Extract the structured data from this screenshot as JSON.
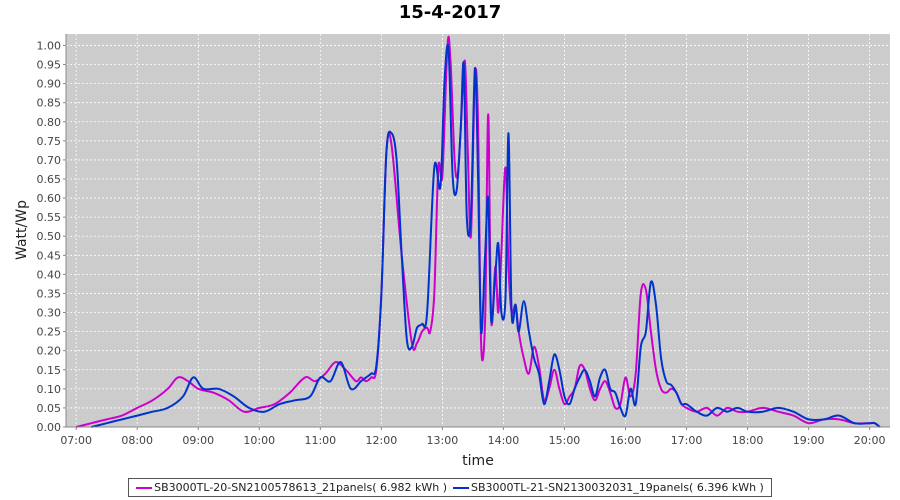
{
  "chart_data": {
    "type": "line",
    "title": "15-4-2017",
    "xlabel": "time",
    "ylabel": "Watt/Wp",
    "xlim": [
      "06:50",
      "20:20"
    ],
    "ylim": [
      0,
      1.03
    ],
    "grid": true,
    "legend_position": "bottom",
    "x_ticks": [
      "07:00",
      "08:00",
      "09:00",
      "10:00",
      "11:00",
      "12:00",
      "13:00",
      "14:00",
      "15:00",
      "16:00",
      "17:00",
      "18:00",
      "19:00",
      "20:00"
    ],
    "y_ticks": [
      "0.00",
      "0.05",
      "0.10",
      "0.15",
      "0.20",
      "0.25",
      "0.30",
      "0.35",
      "0.40",
      "0.45",
      "0.50",
      "0.55",
      "0.60",
      "0.65",
      "0.70",
      "0.75",
      "0.80",
      "0.85",
      "0.90",
      "0.95",
      "1.00"
    ],
    "series": [
      {
        "name": "SB3000TL-20-SN2100578613_21panels( 6.982 kWh )",
        "color": "#cc00cc",
        "x": [
          "07:00",
          "07:15",
          "07:30",
          "07:45",
          "08:00",
          "08:15",
          "08:30",
          "08:40",
          "08:50",
          "09:00",
          "09:15",
          "09:30",
          "09:45",
          "10:00",
          "10:15",
          "10:30",
          "10:45",
          "10:55",
          "11:05",
          "11:15",
          "11:25",
          "11:35",
          "11:40",
          "11:45",
          "11:50",
          "11:55",
          "12:00",
          "12:05",
          "12:10",
          "12:20",
          "12:30",
          "12:35",
          "12:40",
          "12:45",
          "12:48",
          "12:52",
          "12:56",
          "13:00",
          "13:05",
          "13:08",
          "13:12",
          "13:15",
          "13:18",
          "13:22",
          "13:25",
          "13:28",
          "13:32",
          "13:35",
          "13:38",
          "13:42",
          "13:45",
          "13:48",
          "13:52",
          "13:55",
          "13:58",
          "14:02",
          "14:05",
          "14:08",
          "14:12",
          "14:15",
          "14:20",
          "14:25",
          "14:30",
          "14:35",
          "14:40",
          "14:45",
          "14:50",
          "14:55",
          "15:00",
          "15:05",
          "15:10",
          "15:15",
          "15:20",
          "15:25",
          "15:30",
          "15:35",
          "15:40",
          "15:45",
          "15:50",
          "15:55",
          "16:00",
          "16:05",
          "16:10",
          "16:15",
          "16:20",
          "16:25",
          "16:30",
          "16:35",
          "16:40",
          "16:45",
          "16:50",
          "16:55",
          "17:00",
          "17:10",
          "17:20",
          "17:30",
          "17:40",
          "17:50",
          "18:00",
          "18:15",
          "18:30",
          "18:45",
          "19:00",
          "19:15",
          "19:30",
          "19:45",
          "20:00",
          "20:05",
          "20:10"
        ],
        "values": [
          0.0,
          0.01,
          0.02,
          0.03,
          0.05,
          0.07,
          0.1,
          0.13,
          0.12,
          0.1,
          0.09,
          0.07,
          0.04,
          0.05,
          0.06,
          0.09,
          0.13,
          0.12,
          0.14,
          0.17,
          0.15,
          0.12,
          0.13,
          0.12,
          0.13,
          0.15,
          0.35,
          0.72,
          0.74,
          0.45,
          0.22,
          0.22,
          0.25,
          0.26,
          0.25,
          0.35,
          0.68,
          0.66,
          1.0,
          0.96,
          0.7,
          0.66,
          0.78,
          0.96,
          0.72,
          0.5,
          0.92,
          0.8,
          0.22,
          0.28,
          0.82,
          0.28,
          0.42,
          0.3,
          0.46,
          0.68,
          0.42,
          0.3,
          0.32,
          0.25,
          0.18,
          0.14,
          0.21,
          0.16,
          0.07,
          0.1,
          0.15,
          0.1,
          0.06,
          0.08,
          0.1,
          0.16,
          0.15,
          0.1,
          0.07,
          0.1,
          0.12,
          0.09,
          0.05,
          0.06,
          0.13,
          0.08,
          0.14,
          0.35,
          0.36,
          0.25,
          0.15,
          0.1,
          0.09,
          0.1,
          0.09,
          0.06,
          0.05,
          0.04,
          0.05,
          0.03,
          0.05,
          0.04,
          0.04,
          0.05,
          0.04,
          0.03,
          0.01,
          0.02,
          0.02,
          0.01,
          0.01,
          0.01,
          0.0
        ]
      },
      {
        "name": "SB3000TL-21-SN2130032031_19panels( 6.396 kWh )",
        "color": "#0033cc",
        "x": [
          "07:15",
          "07:30",
          "07:45",
          "08:00",
          "08:15",
          "08:30",
          "08:45",
          "08:55",
          "09:05",
          "09:20",
          "09:35",
          "09:50",
          "10:05",
          "10:20",
          "10:35",
          "10:50",
          "11:00",
          "11:10",
          "11:20",
          "11:30",
          "11:40",
          "11:45",
          "11:50",
          "11:55",
          "12:00",
          "12:05",
          "12:10",
          "12:15",
          "12:20",
          "12:25",
          "12:30",
          "12:35",
          "12:40",
          "12:45",
          "12:52",
          "12:58",
          "13:02",
          "13:06",
          "13:10",
          "13:14",
          "13:18",
          "13:21",
          "13:24",
          "13:28",
          "13:32",
          "13:35",
          "13:38",
          "13:42",
          "13:45",
          "13:48",
          "13:52",
          "13:55",
          "13:58",
          "14:02",
          "14:05",
          "14:08",
          "14:12",
          "14:15",
          "14:20",
          "14:25",
          "14:30",
          "14:35",
          "14:40",
          "14:45",
          "14:50",
          "14:55",
          "15:00",
          "15:05",
          "15:10",
          "15:15",
          "15:20",
          "15:25",
          "15:30",
          "15:35",
          "15:40",
          "15:45",
          "15:50",
          "15:55",
          "16:00",
          "16:05",
          "16:10",
          "16:15",
          "16:20",
          "16:25",
          "16:30",
          "16:35",
          "16:40",
          "16:45",
          "16:50",
          "16:55",
          "17:00",
          "17:10",
          "17:20",
          "17:30",
          "17:40",
          "17:50",
          "18:00",
          "18:15",
          "18:30",
          "18:45",
          "19:00",
          "19:15",
          "19:30",
          "19:45",
          "20:00",
          "20:05",
          "20:10"
        ],
        "values": [
          0.0,
          0.01,
          0.02,
          0.03,
          0.04,
          0.05,
          0.08,
          0.13,
          0.1,
          0.1,
          0.08,
          0.05,
          0.04,
          0.06,
          0.07,
          0.08,
          0.13,
          0.12,
          0.17,
          0.1,
          0.12,
          0.13,
          0.14,
          0.16,
          0.35,
          0.72,
          0.77,
          0.7,
          0.45,
          0.23,
          0.21,
          0.26,
          0.27,
          0.3,
          0.68,
          0.63,
          0.9,
          0.99,
          0.66,
          0.62,
          0.78,
          0.95,
          0.55,
          0.55,
          0.94,
          0.66,
          0.25,
          0.45,
          0.6,
          0.28,
          0.4,
          0.48,
          0.3,
          0.34,
          0.77,
          0.3,
          0.32,
          0.25,
          0.33,
          0.25,
          0.18,
          0.14,
          0.06,
          0.12,
          0.19,
          0.15,
          0.08,
          0.06,
          0.1,
          0.13,
          0.15,
          0.12,
          0.08,
          0.13,
          0.15,
          0.1,
          0.09,
          0.05,
          0.03,
          0.1,
          0.06,
          0.21,
          0.25,
          0.38,
          0.32,
          0.18,
          0.12,
          0.11,
          0.09,
          0.06,
          0.06,
          0.04,
          0.03,
          0.05,
          0.04,
          0.05,
          0.04,
          0.04,
          0.05,
          0.04,
          0.02,
          0.02,
          0.03,
          0.01,
          0.01,
          0.01,
          0.0
        ]
      }
    ]
  }
}
